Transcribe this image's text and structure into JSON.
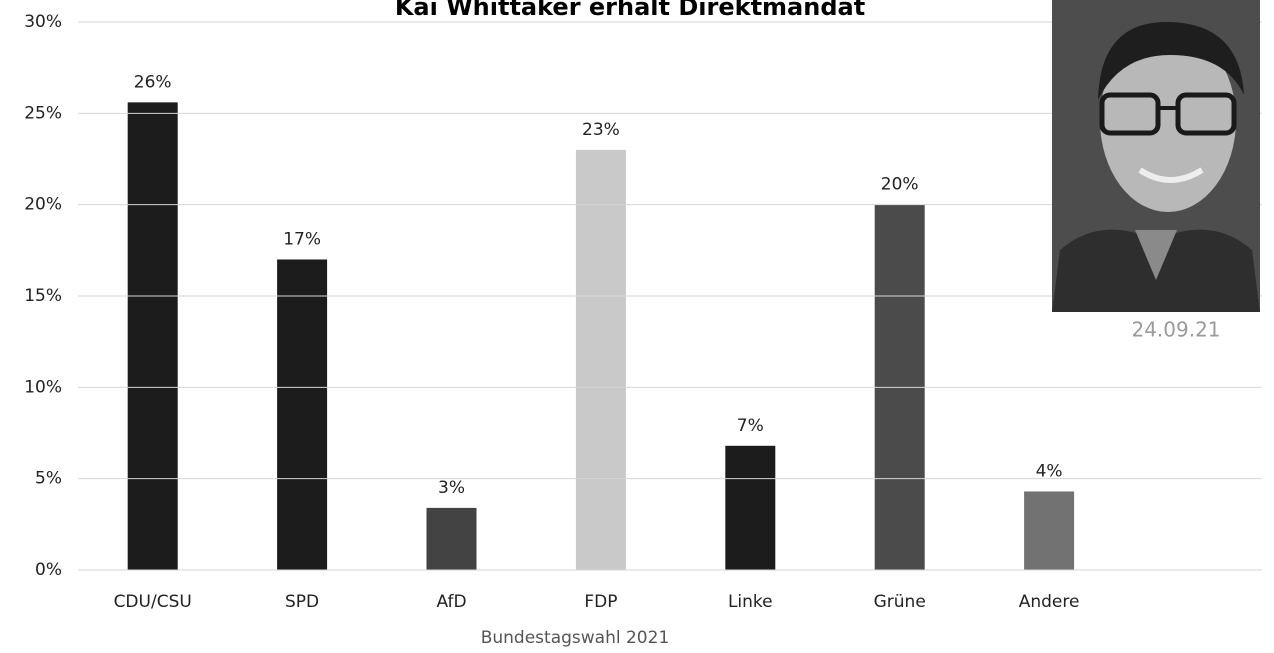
{
  "chart_data": {
    "type": "bar",
    "title": "Kai Whittaker erhält Direktmandat",
    "x_label": "Bundestagswahl 2021",
    "date": "24.09.21",
    "categories": [
      "CDU/CSU",
      "SPD",
      "AfD",
      "FDP",
      "Linke",
      "Grüne",
      "Andere"
    ],
    "values": [
      25.6,
      17.0,
      3.4,
      23.0,
      6.8,
      20.0,
      4.3
    ],
    "value_labels": [
      "26%",
      "17%",
      "3%",
      "23%",
      "7%",
      "20%",
      "4%"
    ],
    "colors": [
      "#1c1c1c",
      "#1c1c1c",
      "#434343",
      "#c9c9c9",
      "#1c1c1c",
      "#4b4b4b",
      "#727272"
    ],
    "ylim": [
      0,
      30
    ],
    "yticks": [
      {
        "value": 0,
        "label": "0%"
      },
      {
        "value": 5,
        "label": "5%"
      },
      {
        "value": 10,
        "label": "10%"
      },
      {
        "value": 15,
        "label": "15%"
      },
      {
        "value": 20,
        "label": "20%"
      },
      {
        "value": 25,
        "label": "25%"
      },
      {
        "value": 30,
        "label": "30%"
      }
    ],
    "grid": true
  }
}
